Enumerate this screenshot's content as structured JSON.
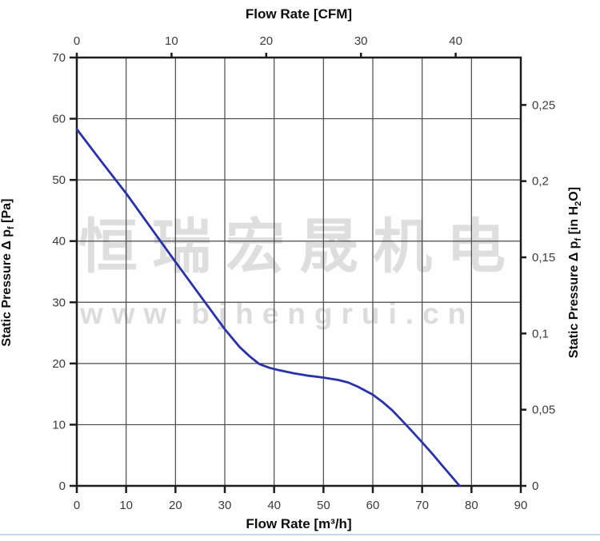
{
  "watermark": {
    "line1": "恒瑞宏晟机电",
    "line2": "www.bjhengrui.cn"
  },
  "chart_data": {
    "type": "line",
    "title_top": "Flow Rate [CFM]",
    "xlabel_bottom": "Flow Rate [m³/h]",
    "ylabel_left": "Static Pressure Δ pf [Pa]",
    "ylabel_right": "Static Pressure Δ pf [in H₂O]",
    "ylabel_left_parts": {
      "pre": "Static Pressure Δ p",
      "sub": "f",
      "post": " [Pa]"
    },
    "ylabel_right_parts": {
      "pre": "Static Pressure Δ p",
      "sub": "f",
      "mid": " [in H",
      "sub2": "2",
      "post": "O]"
    },
    "x_bottom": {
      "min": 0,
      "max": 90,
      "ticks": [
        0,
        10,
        20,
        30,
        40,
        50,
        60,
        70,
        80,
        90
      ]
    },
    "y_left": {
      "min": 0,
      "max": 70,
      "ticks": [
        0,
        10,
        20,
        30,
        40,
        50,
        60,
        70
      ]
    },
    "x_top_cfm": {
      "ticks": [
        0,
        10,
        20,
        30,
        40
      ],
      "m3h_per_cfm": 1.92
    },
    "y_right_inh2o": {
      "tick_labels": [
        "0",
        "0,05",
        "0,1",
        "0,15",
        "0,2",
        "0,25"
      ],
      "tick_values": [
        0,
        0.05,
        0.1,
        0.15,
        0.2,
        0.25
      ],
      "pa_per_inh2o": 249
    },
    "grid": {
      "show": true,
      "color": "#4a4a4a"
    },
    "frame_color": "#1c1c1c",
    "series": [
      {
        "name": "static-pressure-curve",
        "color": "#2a32aa",
        "points": [
          [
            0,
            58.3
          ],
          [
            5,
            53.0
          ],
          [
            10,
            47.8
          ],
          [
            15,
            42.2
          ],
          [
            20,
            36.6
          ],
          [
            25,
            31.1
          ],
          [
            30,
            25.6
          ],
          [
            33,
            22.7
          ],
          [
            35,
            21.2
          ],
          [
            37,
            19.9
          ],
          [
            39,
            19.3
          ],
          [
            41,
            18.9
          ],
          [
            44,
            18.4
          ],
          [
            47,
            18.0
          ],
          [
            50,
            17.7
          ],
          [
            53,
            17.3
          ],
          [
            55,
            16.9
          ],
          [
            57,
            16.2
          ],
          [
            60,
            14.9
          ],
          [
            62,
            13.7
          ],
          [
            64,
            12.3
          ],
          [
            66,
            10.6
          ],
          [
            68,
            8.9
          ],
          [
            70,
            7.1
          ],
          [
            72,
            5.3
          ],
          [
            74,
            3.4
          ],
          [
            76,
            1.5
          ],
          [
            77.6,
            0
          ]
        ]
      }
    ]
  }
}
